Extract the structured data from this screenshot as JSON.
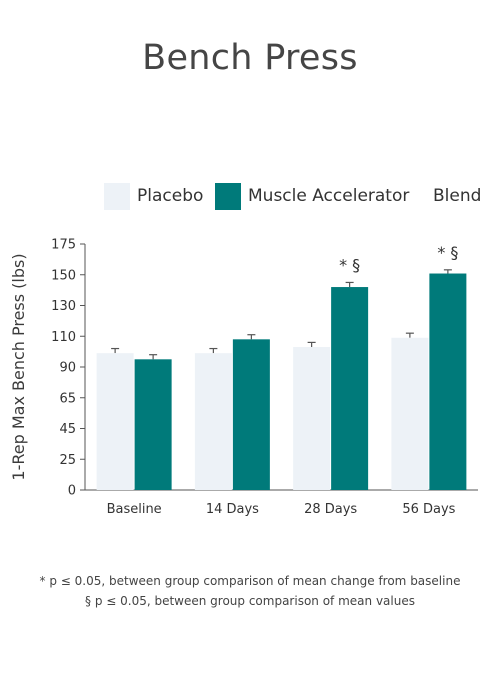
{
  "chart_data": {
    "type": "bar",
    "title": "Bench Press",
    "ylabel": "1-Rep Max Bench Press (lbs)",
    "xlabel": "",
    "categories": [
      "Baseline",
      "14 Days",
      "28 Days",
      "56 Days"
    ],
    "yticks": [
      "0",
      "25",
      "45",
      "65",
      "90",
      "110",
      "130",
      "150",
      "175"
    ],
    "series": [
      {
        "name": "Placebo",
        "color": "#edf2f7",
        "values": [
          99,
          99,
          103,
          109
        ],
        "errors": [
          3,
          3,
          3,
          3
        ]
      },
      {
        "name": "Muscle Accelerator",
        "color": "#007a7a",
        "values": [
          95,
          108,
          142,
          151
        ],
        "errors": [
          3,
          3,
          3,
          3
        ]
      }
    ],
    "legend_extra": "Blend",
    "significance": [
      "",
      "",
      "* §",
      "* §"
    ],
    "grid": false,
    "legend_position": "top"
  },
  "footnotes": [
    "* p ≤ 0.05, between group comparison of mean change from baseline",
    "§ p ≤ 0.05, between group comparison of mean values"
  ]
}
